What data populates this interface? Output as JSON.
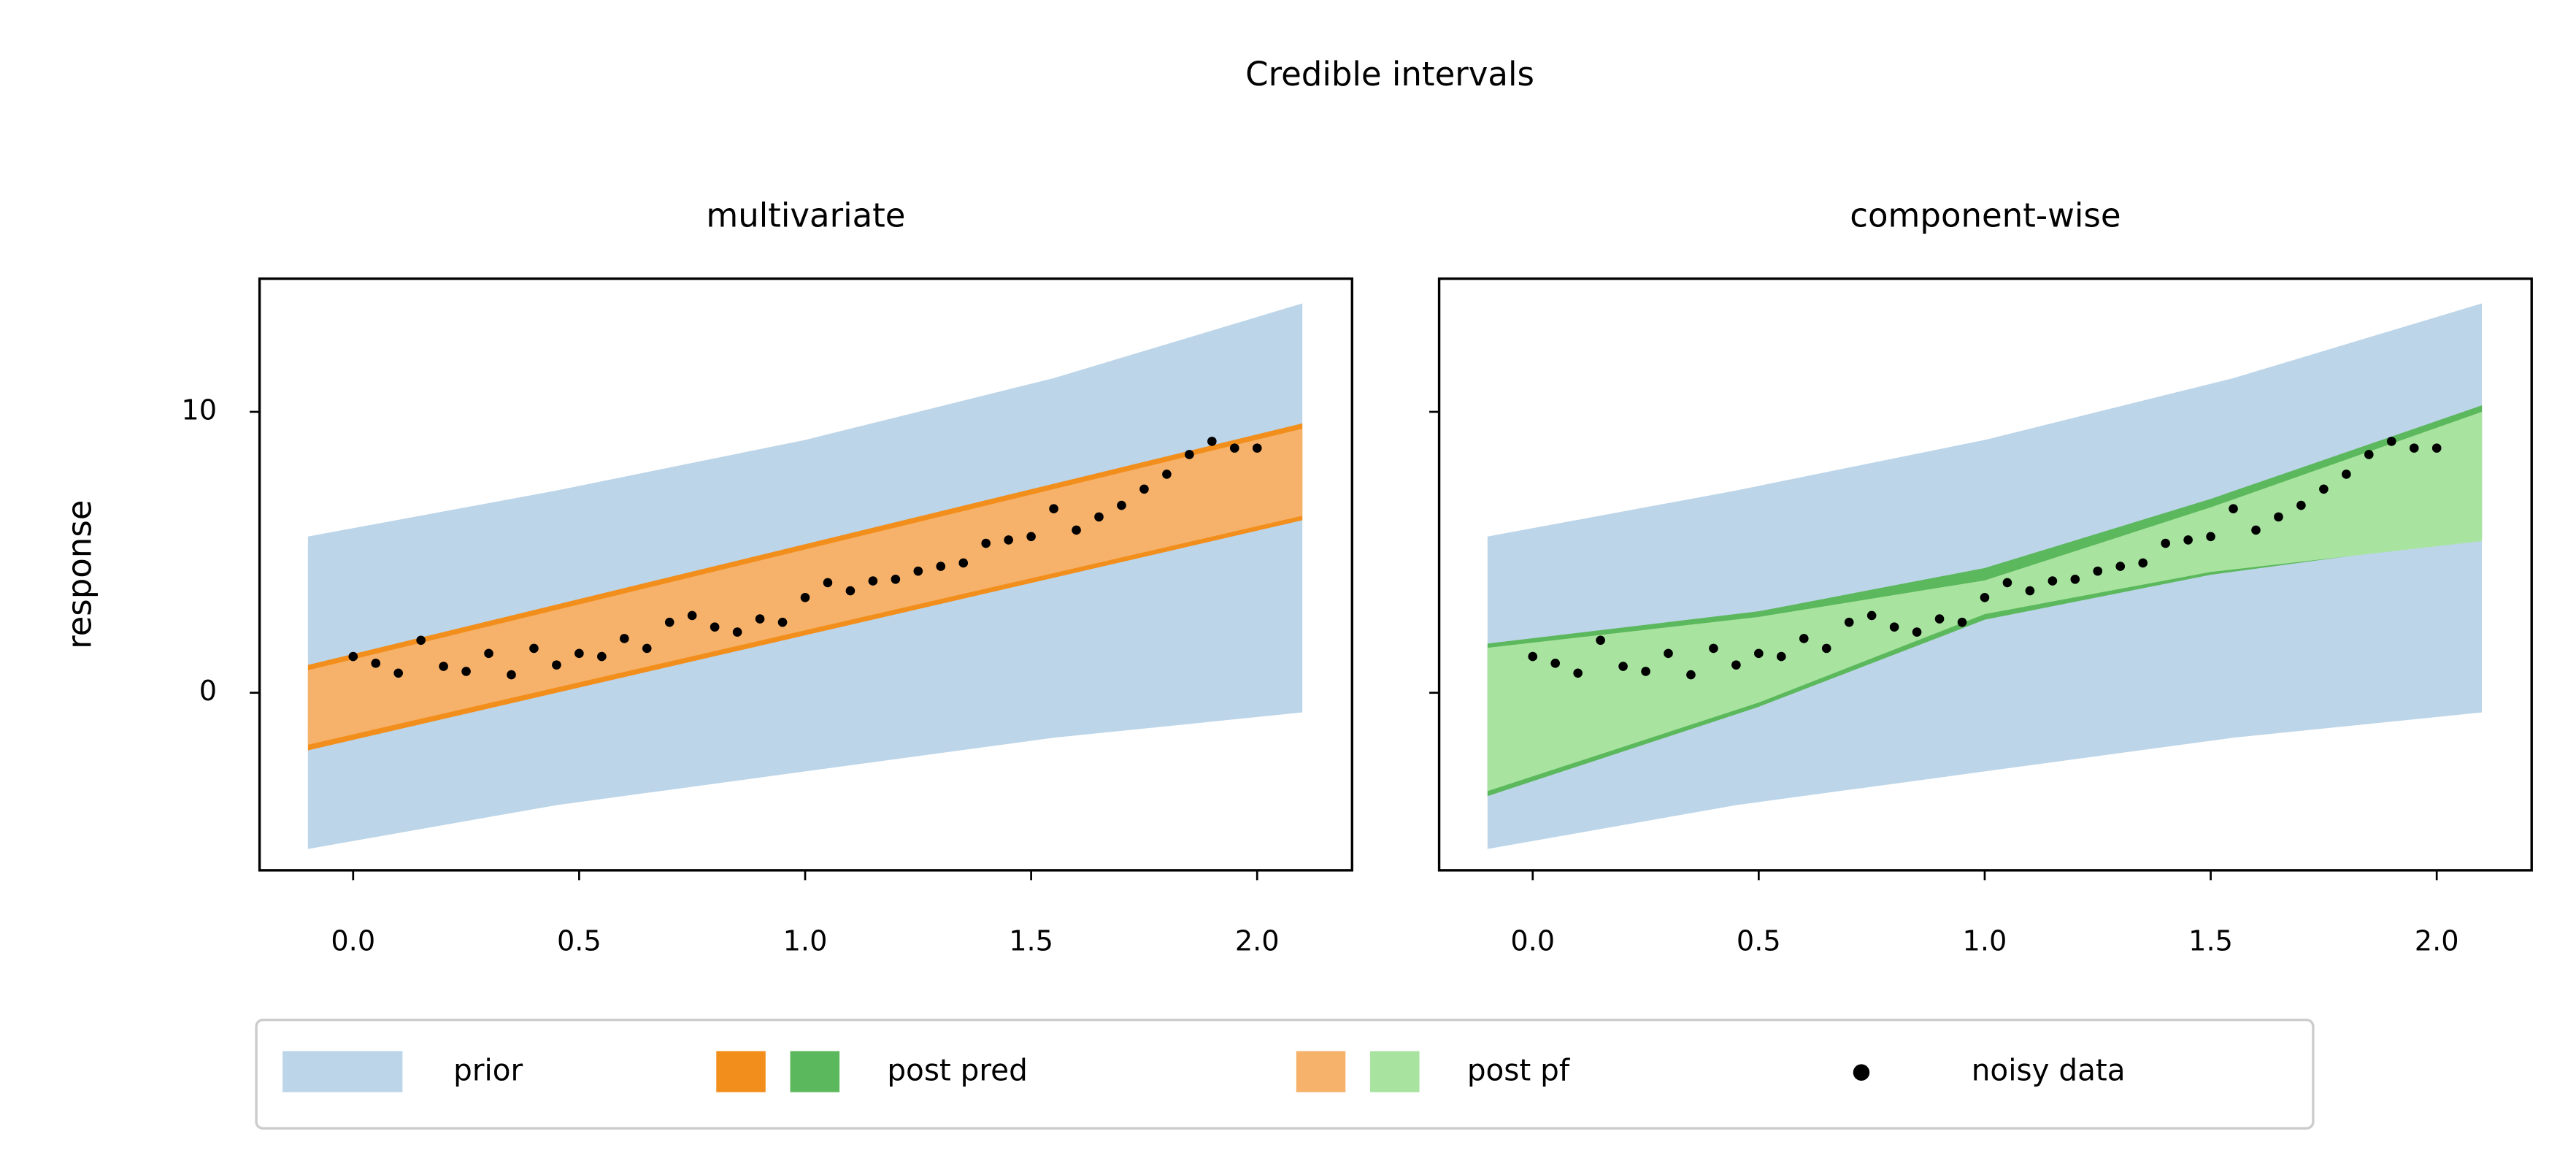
{
  "title": "Credible intervals",
  "legend": "lower center",
  "chart_data": [
    {
      "type": "band",
      "title": "multivariate",
      "ylabel": "response",
      "xlim": [
        -0.207,
        2.21
      ],
      "ylim": [
        -6.32,
        14.74
      ],
      "xticks": [
        {
          "value": 0,
          "label": "0.0"
        },
        0.5,
        {
          "value": 1,
          "label": "1.0"
        },
        1.5,
        {
          "value": 2,
          "label": "2.0"
        }
      ],
      "yticks": [
        0,
        10
      ],
      "yticklabels": true,
      "series": [
        {
          "name": "prior",
          "type": "band",
          "color": "#bcd5e8",
          "x": [
            -0.1,
            0.45,
            1.0,
            1.55,
            2.1
          ],
          "lower": [
            -5.56,
            -4.0,
            -2.8,
            -1.6,
            -0.7
          ],
          "upper": [
            5.56,
            7.2,
            9.0,
            11.2,
            13.86
          ]
        },
        {
          "name": "post pred",
          "type": "band",
          "color": "#f28e1c",
          "x": [
            -0.1,
            2.1
          ],
          "lower": [
            -2.05,
            6.14
          ],
          "upper": [
            0.99,
            9.59
          ]
        },
        {
          "name": "post pf",
          "type": "band",
          "color": "#f6b26b",
          "x": [
            -0.1,
            2.1
          ],
          "lower": [
            -1.85,
            6.3
          ],
          "upper": [
            0.8,
            9.4
          ]
        },
        {
          "name": "noisy data",
          "type": "scatter",
          "color": "#000000",
          "x": [
            0,
            0.05,
            0.1,
            0.15,
            0.2,
            0.25,
            0.3,
            0.35,
            0.4,
            0.45,
            0.5,
            0.55,
            0.6,
            0.65,
            0.7,
            0.75,
            0.8,
            0.85,
            0.9,
            0.95,
            1.0,
            1.05,
            1.1,
            1.15,
            1.2,
            1.25,
            1.3,
            1.35,
            1.4,
            1.45,
            1.5,
            1.55,
            1.6,
            1.65,
            1.7,
            1.75,
            1.8,
            1.85,
            1.9,
            1.95,
            2.0
          ],
          "values": [
            1.29,
            1.05,
            0.7,
            1.87,
            0.94,
            0.76,
            1.4,
            0.64,
            1.58,
            0.99,
            1.4,
            1.29,
            1.93,
            1.58,
            2.51,
            2.75,
            2.34,
            2.16,
            2.63,
            2.51,
            3.39,
            3.92,
            3.63,
            3.98,
            4.04,
            4.33,
            4.5,
            4.62,
            5.32,
            5.44,
            5.56,
            6.55,
            5.79,
            6.26,
            6.67,
            7.25,
            7.78,
            8.48,
            8.95,
            8.71,
            8.71
          ]
        }
      ]
    },
    {
      "type": "band",
      "title": "component-wise",
      "xlim": [
        -0.207,
        2.21
      ],
      "ylim": [
        -6.32,
        14.74
      ],
      "xticks": [
        {
          "value": 0,
          "label": "0.0"
        },
        0.5,
        {
          "value": 1,
          "label": "1.0"
        },
        1.5,
        {
          "value": 2,
          "label": "2.0"
        }
      ],
      "yticks": [
        0,
        10
      ],
      "yticklabels": false,
      "series": [
        {
          "name": "prior",
          "type": "band",
          "color": "#bcd5e8",
          "x": [
            -0.1,
            0.45,
            1.0,
            1.55,
            2.1
          ],
          "lower": [
            -5.56,
            -4.0,
            -2.8,
            -1.6,
            -0.7
          ],
          "upper": [
            5.56,
            7.2,
            9.0,
            11.2,
            13.86
          ]
        },
        {
          "name": "post pred",
          "type": "band",
          "color": "#5cb85c",
          "x": [
            -0.1,
            0.5,
            1.0,
            1.5,
            2.1
          ],
          "lower": [
            -3.68,
            -0.5,
            2.6,
            4.2,
            5.5
          ],
          "upper": [
            1.75,
            2.9,
            4.44,
            6.9,
            10.23
          ]
        },
        {
          "name": "post pf",
          "type": "band",
          "color": "#a8e4a0",
          "x": [
            -0.1,
            0.5,
            1.0,
            1.5,
            2.1
          ],
          "lower": [
            -3.5,
            -0.35,
            2.8,
            4.3,
            5.4
          ],
          "upper": [
            1.6,
            2.7,
            4.0,
            6.6,
            10.0
          ]
        },
        {
          "name": "noisy data",
          "type": "scatter",
          "color": "#000000",
          "x": [
            0,
            0.05,
            0.1,
            0.15,
            0.2,
            0.25,
            0.3,
            0.35,
            0.4,
            0.45,
            0.5,
            0.55,
            0.6,
            0.65,
            0.7,
            0.75,
            0.8,
            0.85,
            0.9,
            0.95,
            1.0,
            1.05,
            1.1,
            1.15,
            1.2,
            1.25,
            1.3,
            1.35,
            1.4,
            1.45,
            1.5,
            1.55,
            1.6,
            1.65,
            1.7,
            1.75,
            1.8,
            1.85,
            1.9,
            1.95,
            2.0
          ],
          "values": [
            1.29,
            1.05,
            0.7,
            1.87,
            0.94,
            0.76,
            1.4,
            0.64,
            1.58,
            0.99,
            1.4,
            1.29,
            1.93,
            1.58,
            2.51,
            2.75,
            2.34,
            2.16,
            2.63,
            2.51,
            3.39,
            3.92,
            3.63,
            3.98,
            4.04,
            4.33,
            4.5,
            4.62,
            5.32,
            5.44,
            5.56,
            6.55,
            5.79,
            6.26,
            6.67,
            7.25,
            7.78,
            8.48,
            8.95,
            8.71,
            8.71
          ]
        }
      ]
    }
  ]
}
